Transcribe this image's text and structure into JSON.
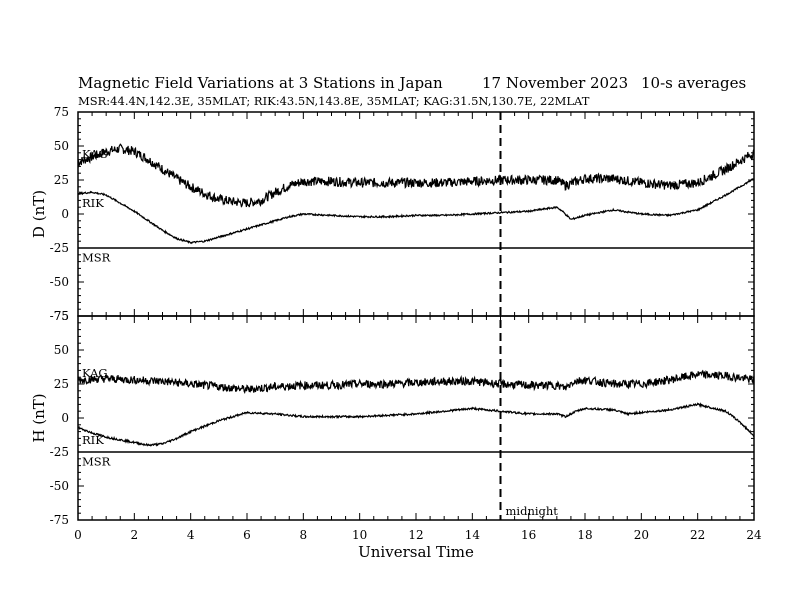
{
  "header": {
    "title": "Magnetic Field Variations at 3 Stations in Japan",
    "date": "17 November 2023",
    "averaging": "10-s averages",
    "stations_line": "MSR:44.4N,142.3E, 35MLAT;  RIK:43.5N,143.8E, 35MLAT;  KAG:31.5N,130.7E, 22MLAT"
  },
  "chart_data": [
    {
      "type": "line",
      "panel": "top",
      "ylabel": "D (nT)",
      "xlabel": "",
      "xlim": [
        0,
        24
      ],
      "ylim": [
        -75,
        75
      ],
      "yticks": [
        75,
        50,
        25,
        0,
        -25,
        -50,
        -75
      ],
      "xticks": [
        0,
        2,
        4,
        6,
        8,
        10,
        12,
        14,
        16,
        18,
        20,
        22,
        24
      ],
      "separator_y": -25,
      "series": [
        {
          "name": "KAG",
          "x": [
            0,
            0.5,
            1,
            1.5,
            2,
            2.5,
            3,
            3.5,
            4,
            4.5,
            5,
            5.5,
            6,
            6.5,
            7,
            7.5,
            8,
            9,
            10,
            11,
            12,
            13,
            14,
            15,
            16,
            17,
            17.3,
            17.7,
            18,
            19,
            20,
            21,
            22,
            23,
            24
          ],
          "y": [
            38,
            42,
            46,
            48,
            46,
            40,
            33,
            26,
            20,
            15,
            11,
            9,
            8,
            10,
            16,
            21,
            24,
            24,
            23,
            23,
            23,
            23,
            24,
            25,
            25,
            25,
            21,
            24,
            26,
            26,
            23,
            21,
            23,
            33,
            45
          ],
          "noise": 3.5,
          "label": "KAG",
          "label_y": 44
        },
        {
          "name": "RIK",
          "x": [
            0,
            0.5,
            1,
            1.5,
            2,
            2.5,
            3,
            3.5,
            4,
            4.5,
            5,
            5.5,
            6,
            6.5,
            7,
            7.5,
            8,
            9,
            10,
            11,
            12,
            13,
            14,
            15,
            16,
            17,
            17.2,
            17.5,
            18,
            19,
            20,
            21,
            22,
            23,
            24
          ],
          "y": [
            15,
            16,
            14,
            8,
            2,
            -5,
            -12,
            -18,
            -21,
            -20,
            -17,
            -14,
            -11,
            -8,
            -5,
            -2,
            0,
            -1,
            -2,
            -2,
            -1,
            -1,
            0,
            1,
            2,
            5,
            2,
            -4,
            -1,
            3,
            0,
            -1,
            3,
            14,
            26
          ],
          "noise": 0.6,
          "label": "RIK",
          "label_y": 8
        },
        {
          "name": "MSR",
          "x": [],
          "y": [],
          "noise": 0,
          "label": "MSR",
          "label_y": -32
        }
      ]
    },
    {
      "type": "line",
      "panel": "bottom",
      "ylabel": "H (nT)",
      "xlabel": "Universal Time",
      "xlim": [
        0,
        24
      ],
      "ylim": [
        -75,
        75
      ],
      "yticks": [
        75,
        50,
        25,
        0,
        -25,
        -50,
        -75
      ],
      "xticks": [
        0,
        2,
        4,
        6,
        8,
        10,
        12,
        14,
        16,
        18,
        20,
        22,
        24
      ],
      "separator_y": -25,
      "series": [
        {
          "name": "KAG",
          "x": [
            0,
            1,
            2,
            3,
            4,
            5,
            6,
            7,
            8,
            9,
            10,
            11,
            12,
            13,
            14,
            15,
            16,
            17,
            17.3,
            17.6,
            18,
            19,
            20,
            21,
            22,
            23,
            24
          ],
          "y": [
            28,
            29,
            28,
            27,
            25,
            23,
            21,
            23,
            24,
            24,
            25,
            25,
            26,
            27,
            27,
            25,
            24,
            24,
            22,
            27,
            28,
            25,
            25,
            28,
            32,
            31,
            28
          ],
          "noise": 3,
          "label": "KAG",
          "label_y": 33
        },
        {
          "name": "RIK",
          "x": [
            0,
            0.5,
            1,
            2,
            2.5,
            3,
            3.5,
            4,
            5,
            6,
            7,
            8,
            9,
            10,
            11,
            12,
            13,
            14,
            15,
            16,
            17,
            17.3,
            17.7,
            18,
            19,
            19.5,
            20,
            21,
            22,
            23,
            23.5,
            24
          ],
          "y": [
            -7,
            -11,
            -14,
            -18,
            -20,
            -19,
            -15,
            -10,
            -2,
            4,
            3,
            1,
            1,
            1,
            2,
            3,
            5,
            7,
            5,
            3,
            3,
            1,
            5,
            7,
            6,
            3,
            4,
            6,
            10,
            5,
            -3,
            -13
          ],
          "noise": 0.7,
          "label": "RIK",
          "label_y": -16
        },
        {
          "name": "MSR",
          "x": [],
          "y": [],
          "noise": 0,
          "label": "MSR",
          "label_y": -32
        }
      ]
    }
  ],
  "midnight": {
    "x": 15,
    "label": "midnight"
  }
}
